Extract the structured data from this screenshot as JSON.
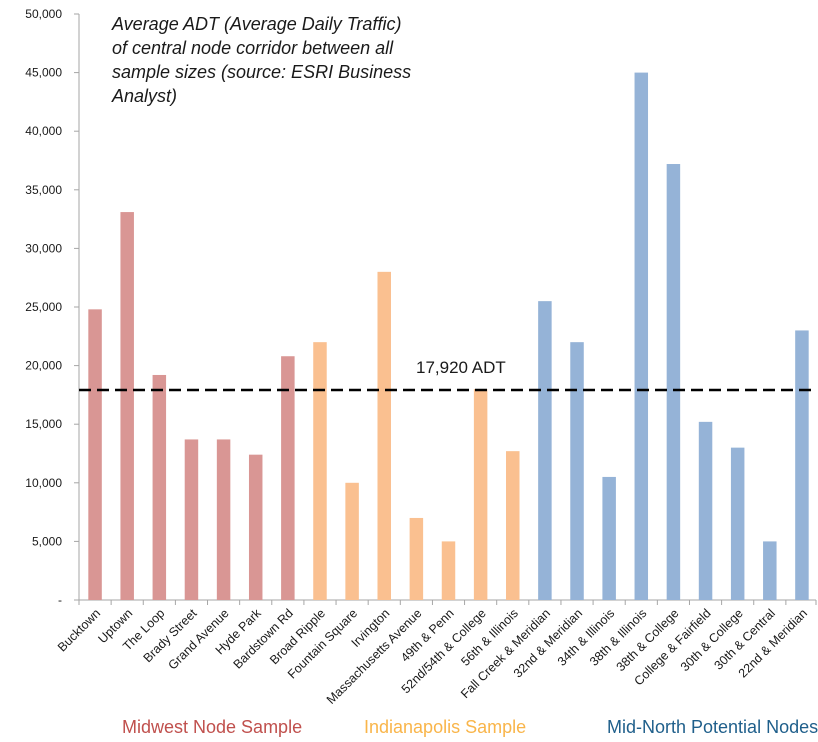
{
  "chart_data": {
    "type": "bar",
    "title": "Average ADT (Average Daily Traffic) of central node corridor between all sample sizes (source: ESRI Business Analyst)",
    "xlabel": "",
    "ylabel": "",
    "ylim": [
      0,
      50000
    ],
    "yticks": [
      {
        "value": 0,
        "label": "-"
      },
      {
        "value": 5000,
        "label": "5,000"
      },
      {
        "value": 10000,
        "label": "10,000"
      },
      {
        "value": 15000,
        "label": "15,000"
      },
      {
        "value": 20000,
        "label": "20,000"
      },
      {
        "value": 25000,
        "label": "25,000"
      },
      {
        "value": 30000,
        "label": "30,000"
      },
      {
        "value": 35000,
        "label": "35,000"
      },
      {
        "value": 40000,
        "label": "40,000"
      },
      {
        "value": 45000,
        "label": "45,000"
      },
      {
        "value": 50000,
        "label": "50,000"
      }
    ],
    "categories": [
      "Bucktown",
      "Uptown",
      "The Loop",
      "Brady Street",
      "Grand Avenue",
      "Hyde Park",
      "Bardstown Rd",
      "Broad Ripple",
      "Fountain Square",
      "Irvington",
      "Massachusetts Avenue",
      "49th & Penn",
      "52nd/54th & College",
      "56th & Illinois",
      "Fall Creek & Meridian",
      "32nd & Meridian",
      "34th & Illinois",
      "38th & Illinois",
      "38th & College",
      "College & Fairfield",
      "30th & College",
      "30th & Central",
      "22nd & Meridian"
    ],
    "values": [
      24800,
      33100,
      19200,
      13700,
      13700,
      12400,
      20800,
      22000,
      10000,
      28000,
      7000,
      5000,
      18000,
      12700,
      25500,
      22000,
      10500,
      45000,
      37200,
      15200,
      13000,
      5000,
      23000
    ],
    "groups": [
      {
        "name": "Midwest Node Sample",
        "start": 0,
        "count": 7,
        "color": "#d99694"
      },
      {
        "name": "Indianapolis Sample",
        "start": 7,
        "count": 7,
        "color": "#fac090"
      },
      {
        "name": "Mid-North Potential Nodes",
        "start": 14,
        "count": 9,
        "color": "#95b3d7"
      }
    ],
    "group_label_colors": [
      "#c0504d",
      "#f9b54a",
      "#1f5f8b"
    ],
    "reference_line": {
      "value": 17920,
      "label": "17,920 ADT",
      "style": "dashed",
      "color": "#000000"
    },
    "grid": false,
    "legend": "none"
  }
}
